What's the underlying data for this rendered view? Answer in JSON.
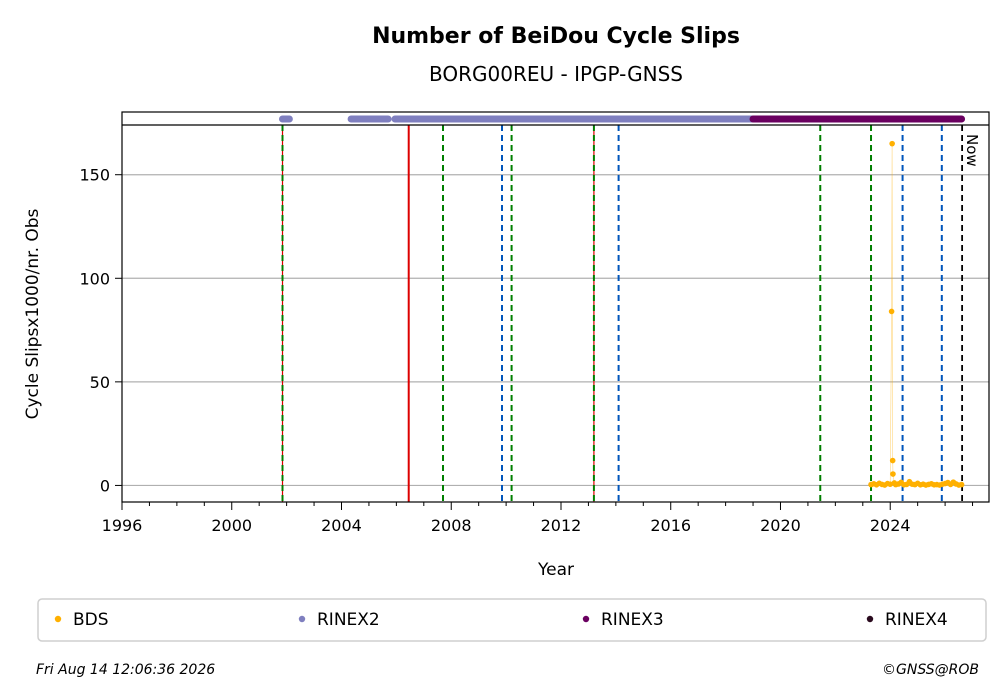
{
  "chart_data": {
    "type": "scatter",
    "title": "Number of BeiDou Cycle Slips",
    "subtitle": "BORG00REU - IPGP-GNSS",
    "xlabel": "Year",
    "ylabel": "Cycle Slipsx1000/nr. Obs",
    "xlim": [
      1996,
      2027.6
    ],
    "ylim": [
      -8,
      174
    ],
    "x_ticks": [
      1996,
      2000,
      2004,
      2008,
      2012,
      2016,
      2020,
      2024
    ],
    "y_ticks": [
      0,
      50,
      100,
      150
    ],
    "grid": "horizontal",
    "now_label": "Now",
    "now_x": 2026.62,
    "series": [
      {
        "name": "BDS",
        "color": "#ffb000",
        "points": [
          [
            2023.3,
            0.4
          ],
          [
            2023.4,
            0.8
          ],
          [
            2023.5,
            0.3
          ],
          [
            2023.6,
            1.0
          ],
          [
            2023.7,
            0.5
          ],
          [
            2023.8,
            0.2
          ],
          [
            2023.9,
            0.9
          ],
          [
            2024.0,
            0.6
          ],
          [
            2024.05,
            84
          ],
          [
            2024.07,
            165
          ],
          [
            2024.09,
            12
          ],
          [
            2024.1,
            5.5
          ],
          [
            2024.15,
            1.2
          ],
          [
            2024.2,
            0.4
          ],
          [
            2024.3,
            0.7
          ],
          [
            2024.4,
            1.5
          ],
          [
            2024.5,
            0.3
          ],
          [
            2024.6,
            0.5
          ],
          [
            2024.7,
            1.8
          ],
          [
            2024.8,
            0.6
          ],
          [
            2024.9,
            0.4
          ],
          [
            2025.0,
            1.0
          ],
          [
            2025.1,
            0.3
          ],
          [
            2025.2,
            0.6
          ],
          [
            2025.3,
            0.2
          ],
          [
            2025.4,
            0.5
          ],
          [
            2025.5,
            0.8
          ],
          [
            2025.6,
            0.3
          ],
          [
            2025.7,
            0.4
          ],
          [
            2025.8,
            0.2
          ],
          [
            2025.9,
            0.6
          ],
          [
            2026.0,
            0.9
          ],
          [
            2026.1,
            1.4
          ],
          [
            2026.2,
            0.5
          ],
          [
            2026.3,
            1.6
          ],
          [
            2026.4,
            0.7
          ],
          [
            2026.5,
            0.2
          ],
          [
            2026.6,
            0.4
          ]
        ]
      },
      {
        "name": "RINEX2",
        "color": "#7f7fbf",
        "segments": [
          [
            2001.85,
            2002.1
          ],
          [
            2004.35,
            2005.7
          ],
          [
            2005.95,
            2019.0
          ]
        ]
      },
      {
        "name": "RINEX3",
        "color": "#6a0060",
        "segments": [
          [
            2019.0,
            2026.6
          ]
        ]
      },
      {
        "name": "RINEX4",
        "color": "#2a0a1e",
        "segments": []
      }
    ],
    "event_lines": [
      {
        "x": 2001.85,
        "style": "green-dashed-red"
      },
      {
        "x": 2006.45,
        "style": "red-solid"
      },
      {
        "x": 2007.7,
        "style": "green-dashed"
      },
      {
        "x": 2009.85,
        "style": "blue-dashed"
      },
      {
        "x": 2010.2,
        "style": "green-dashed"
      },
      {
        "x": 2013.2,
        "style": "green-dashed-red"
      },
      {
        "x": 2014.1,
        "style": "blue-dashed"
      },
      {
        "x": 2021.45,
        "style": "green-dashed"
      },
      {
        "x": 2023.3,
        "style": "green-dashed"
      },
      {
        "x": 2024.45,
        "style": "blue-dashed"
      },
      {
        "x": 2025.88,
        "style": "blue-dashed"
      }
    ]
  },
  "footer": {
    "timestamp": "Fri Aug 14 12:06:36 2026",
    "credit": "©GNSS@ROB"
  }
}
